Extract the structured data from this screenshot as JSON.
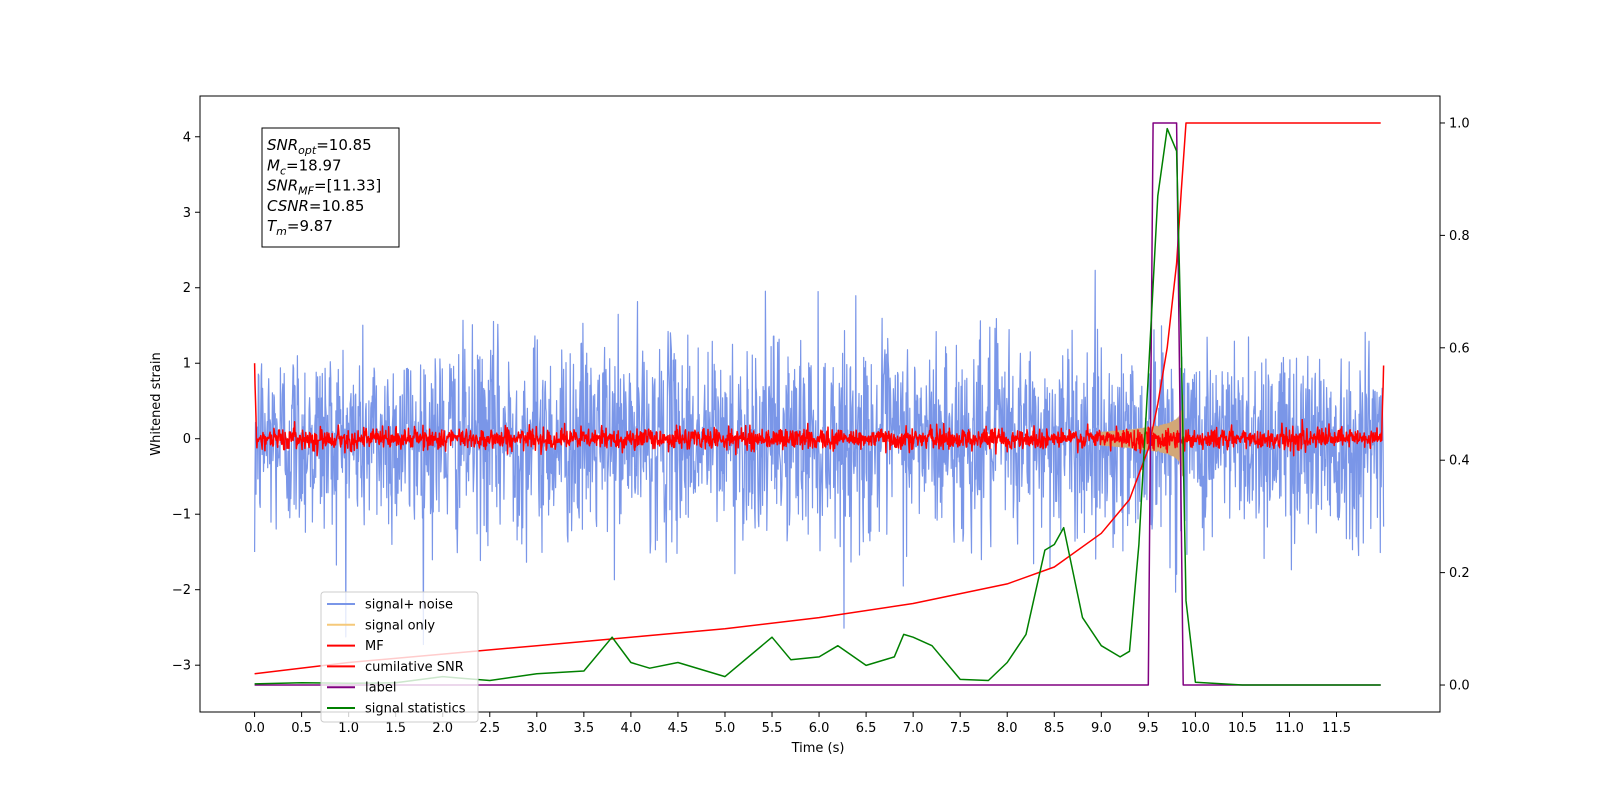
{
  "chart_data": {
    "type": "line",
    "xlabel": "Time (s)",
    "ylabel": "Whitened strain",
    "xlim": [
      -0.58,
      12.6
    ],
    "ylim": [
      -3.62,
      4.54
    ],
    "y2lim": [
      -0.048,
      1.048
    ],
    "x_ticks": [
      0.0,
      0.5,
      1.0,
      1.5,
      2.0,
      2.5,
      3.0,
      3.5,
      4.0,
      4.5,
      5.0,
      5.5,
      6.0,
      6.5,
      7.0,
      7.5,
      8.0,
      8.5,
      9.0,
      9.5,
      10.0,
      10.5,
      11.0,
      11.5
    ],
    "x_tick_labels": [
      "0.0",
      "0.5",
      "1.0",
      "1.5",
      "2.0",
      "2.5",
      "3.0",
      "3.5",
      "4.0",
      "4.5",
      "5.0",
      "5.5",
      "6.0",
      "6.5",
      "7.0",
      "7.5",
      "8.0",
      "8.5",
      "9.0",
      "9.5",
      "10.0",
      "10.5",
      "11.0",
      "11.5"
    ],
    "y_ticks": [
      -3,
      -2,
      -1,
      0,
      1,
      2,
      3,
      4
    ],
    "y_tick_labels": [
      "−3",
      "−2",
      "−1",
      "0",
      "1",
      "2",
      "3",
      "4"
    ],
    "y2_ticks": [
      0.0,
      0.2,
      0.4,
      0.6,
      0.8,
      1.0
    ],
    "y2_tick_labels": [
      "0.0",
      "0.2",
      "0.4",
      "0.6",
      "0.8",
      "1.0"
    ],
    "grid": false,
    "legend_position": "lower-left",
    "annotations": [
      {
        "base": "SNR",
        "sub": "opt",
        "value": "=10.85"
      },
      {
        "base": "M",
        "sub": "c",
        "value": "=18.97"
      },
      {
        "base": "SNR",
        "sub": "MF",
        "value": "=[11.33]"
      },
      {
        "base": "CSNR",
        "sub": "",
        "value": "=10.85"
      },
      {
        "base": "T",
        "sub": "m",
        "value": "=9.87"
      }
    ],
    "series": [
      {
        "name": "signal+ noise",
        "color": "#7a96e8",
        "axis": "left",
        "kind": "noise",
        "x_range": [
          0.0,
          12.0
        ],
        "std": 0.65,
        "max": 3.13,
        "min": -3.25
      },
      {
        "name": "signal only",
        "color": "#f5c97a",
        "axis": "left",
        "kind": "chirp",
        "merger_time": 9.87,
        "peak_amplitude": 0.6
      },
      {
        "name": "MF",
        "color": "#ff0000",
        "axis": "left",
        "kind": "noise",
        "x_range": [
          0.0,
          12.0
        ],
        "std": 0.07,
        "edge_values": [
          1.0,
          0.97
        ]
      },
      {
        "name": "cumilative SNR",
        "color": "#ff0000",
        "axis": "right",
        "x": [
          0.0,
          1.0,
          2.0,
          3.0,
          4.0,
          5.0,
          6.0,
          7.0,
          8.0,
          8.5,
          9.0,
          9.3,
          9.5,
          9.6,
          9.7,
          9.8,
          9.85,
          9.9,
          11.97
        ],
        "y": [
          0.02,
          0.04,
          0.055,
          0.07,
          0.085,
          0.1,
          0.12,
          0.145,
          0.18,
          0.21,
          0.27,
          0.33,
          0.42,
          0.5,
          0.6,
          0.75,
          0.88,
          1.0,
          1.0
        ]
      },
      {
        "name": "label",
        "color": "#800080",
        "axis": "right",
        "x": [
          0.0,
          9.5,
          9.55,
          9.8,
          9.87,
          11.97
        ],
        "y": [
          0.0,
          0.0,
          1.0,
          1.0,
          0.0,
          0.0
        ]
      },
      {
        "name": "signal statistics",
        "color": "#008000",
        "axis": "right",
        "x": [
          0.0,
          0.5,
          1.0,
          1.5,
          2.0,
          2.2,
          2.5,
          3.0,
          3.5,
          3.8,
          4.0,
          4.2,
          4.5,
          5.0,
          5.5,
          5.7,
          6.0,
          6.2,
          6.5,
          6.8,
          6.9,
          7.0,
          7.2,
          7.5,
          7.8,
          8.0,
          8.2,
          8.4,
          8.5,
          8.6,
          8.7,
          8.8,
          9.0,
          9.2,
          9.3,
          9.4,
          9.5,
          9.6,
          9.7,
          9.8,
          9.85,
          9.9,
          10.0,
          10.5,
          11.97
        ],
        "y": [
          0.002,
          0.004,
          0.003,
          0.004,
          0.015,
          0.012,
          0.008,
          0.02,
          0.025,
          0.085,
          0.04,
          0.03,
          0.04,
          0.015,
          0.085,
          0.045,
          0.05,
          0.07,
          0.035,
          0.05,
          0.09,
          0.085,
          0.07,
          0.01,
          0.008,
          0.04,
          0.09,
          0.24,
          0.25,
          0.28,
          0.2,
          0.12,
          0.07,
          0.05,
          0.06,
          0.25,
          0.55,
          0.87,
          0.99,
          0.95,
          0.6,
          0.15,
          0.005,
          0.0,
          0.0
        ]
      }
    ]
  }
}
